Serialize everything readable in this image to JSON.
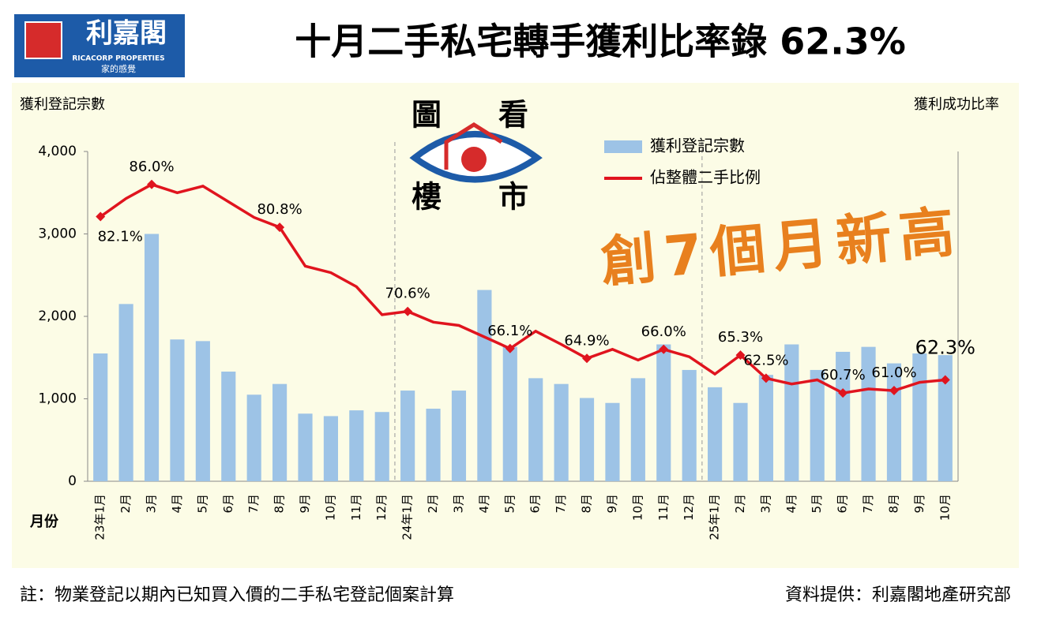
{
  "chart_data": {
    "type": "bar_line",
    "title": "十月二手私宅轉手獲利比率錄 62.3%",
    "brand": {
      "name": "利嘉閣",
      "english": "RICACORP PROPERTIES",
      "slogan": "家的感覺"
    },
    "badge": [
      "圖",
      "看",
      "樓",
      "市"
    ],
    "y_label": "獲利登記宗數",
    "y2_label": "獲利成功比率",
    "x_label": "月份",
    "annotation": "創7個月新高",
    "note": "註：物業登記以期內已知買入價的二手私宅登記個案計算",
    "source": "資料提供：利嘉閣地產研究部",
    "categories": [
      "23年1月",
      "2月",
      "3月",
      "4月",
      "5月",
      "6月",
      "7月",
      "8月",
      "9月",
      "10月",
      "11月",
      "12月",
      "24年1月",
      "2月",
      "3月",
      "4月",
      "5月",
      "6月",
      "7月",
      "8月",
      "9月",
      "10月",
      "11月",
      "12月",
      "25年1月",
      "2月",
      "3月",
      "4月",
      "5月",
      "6月",
      "7月",
      "8月",
      "9月",
      "10月"
    ],
    "series": [
      {
        "name": "獲利登記宗數",
        "kind": "bar",
        "color": "#9dc3e6",
        "values": [
          1550,
          2150,
          3000,
          1720,
          1700,
          1330,
          1050,
          1180,
          820,
          790,
          860,
          840,
          1100,
          880,
          1100,
          2320,
          1630,
          1250,
          1180,
          1010,
          950,
          1250,
          1660,
          1350,
          1140,
          950,
          1290,
          1660,
          1350,
          1570,
          1630,
          1430,
          1550,
          1530
        ]
      },
      {
        "name": "佔整體二手比例",
        "kind": "line",
        "axis": "y2",
        "color": "#e0141e",
        "values": [
          82.1,
          84.3,
          86.0,
          85.0,
          85.8,
          83.9,
          82.0,
          80.8,
          76.1,
          75.3,
          73.6,
          70.2,
          70.6,
          69.3,
          68.9,
          67.5,
          66.1,
          68.2,
          66.6,
          64.9,
          66.0,
          64.7,
          66.0,
          65.1,
          63.0,
          65.3,
          62.5,
          61.8,
          62.3,
          60.7,
          61.2,
          61.0,
          62.0,
          62.3
        ],
        "value_labels": [
          "82.1%",
          null,
          "86.0%",
          null,
          null,
          null,
          null,
          "80.8%",
          null,
          null,
          null,
          null,
          "70.6%",
          null,
          null,
          null,
          "66.1%",
          null,
          null,
          "64.9%",
          null,
          null,
          "66.0%",
          null,
          null,
          "65.3%",
          "62.5%",
          null,
          null,
          "60.7%",
          null,
          "61.0%",
          null,
          "62.3%"
        ]
      }
    ],
    "ylim": [
      0,
      4000
    ],
    "yticks": [
      0,
      {
        "value": 1000,
        "label": "1,000"
      },
      {
        "value": 2000,
        "label": "2,000"
      },
      {
        "value": 3000,
        "label": "3,000"
      },
      {
        "value": 4000,
        "label": "4,000"
      }
    ],
    "y2lim": [
      50,
      90
    ],
    "legend": "top-center"
  }
}
